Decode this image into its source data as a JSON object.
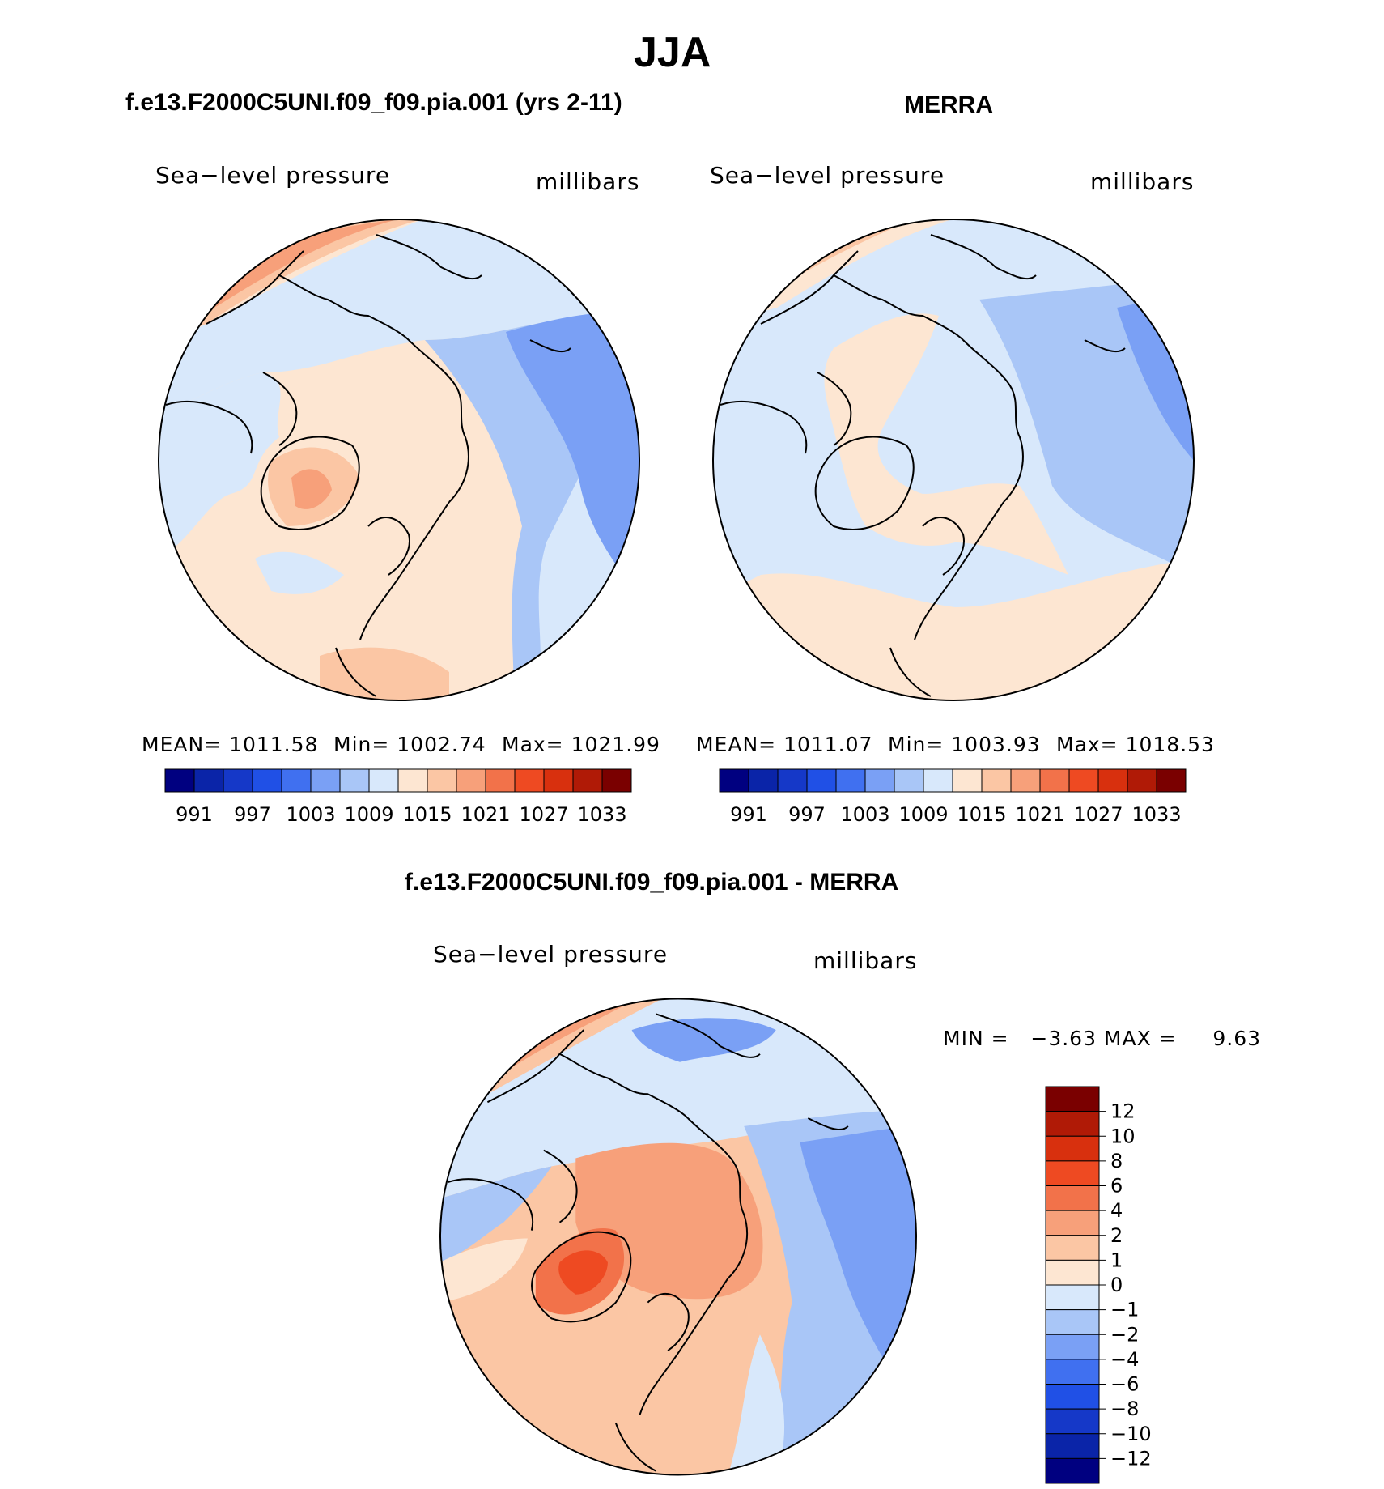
{
  "title": "JJA",
  "panels": [
    {
      "name": "model",
      "title": "f.e13.F2000C5UNI.f09_f09.pia.001 (yrs 2-11)",
      "left_label": "Sea−level pressure",
      "right_label": "millibars",
      "stats": {
        "mean": "MEAN= 1011.58",
        "min": "Min= 1002.74",
        "max": "Max= 1021.99"
      }
    },
    {
      "name": "obs",
      "title": "MERRA",
      "left_label": "Sea−level pressure",
      "right_label": "millibars",
      "stats": {
        "mean": "MEAN= 1011.07",
        "min": "Min= 1003.93",
        "max": "Max= 1018.53"
      }
    },
    {
      "name": "diff",
      "title": "f.e13.F2000C5UNI.f09_f09.pia.001 - MERRA",
      "left_label": "Sea−level pressure",
      "right_label": "millibars",
      "minmax": "MIN =   −3.63 MAX =     9.63"
    }
  ],
  "abs_colorbar": {
    "colors": [
      "#000080",
      "#0a24a8",
      "#1538c8",
      "#2050e6",
      "#4070f0",
      "#7aa0f5",
      "#a9c6f7",
      "#d8e8fb",
      "#fde6d2",
      "#fbc6a4",
      "#f7a07a",
      "#f2724a",
      "#ee4a22",
      "#d8300e",
      "#b01a06",
      "#7a0000"
    ],
    "ticks": [
      "991",
      "997",
      "1003",
      "1009",
      "1015",
      "1021",
      "1027",
      "1033"
    ]
  },
  "diff_colorbar": {
    "colors": [
      "#000080",
      "#0a24a8",
      "#1538c8",
      "#2050e6",
      "#4070f0",
      "#7aa0f5",
      "#a9c6f7",
      "#d8e8fb",
      "#fde6d2",
      "#fbc6a4",
      "#f7a07a",
      "#f2724a",
      "#ee4a22",
      "#d8300e",
      "#b01a06",
      "#7a0000"
    ],
    "ticks": [
      "12",
      "10",
      "8",
      "6",
      "4",
      "2",
      "1",
      "0",
      "−1",
      "−2",
      "−4",
      "−6",
      "−8",
      "−10",
      "−12"
    ]
  },
  "chart_data": [
    {
      "type": "heatmap",
      "title": "f.e13.F2000C5UNI.f09_f09.pia.001 (yrs 2-11)",
      "variable": "Sea−level pressure",
      "units": "millibars",
      "projection": "north polar stereographic",
      "mean": 1011.58,
      "min": 1002.74,
      "max": 1021.99,
      "levels": [
        991,
        997,
        1003,
        1009,
        1015,
        1021,
        1027,
        1033
      ]
    },
    {
      "type": "heatmap",
      "title": "MERRA",
      "variable": "Sea−level pressure",
      "units": "millibars",
      "projection": "north polar stereographic",
      "mean": 1011.07,
      "min": 1003.93,
      "max": 1018.53,
      "levels": [
        991,
        997,
        1003,
        1009,
        1015,
        1021,
        1027,
        1033
      ]
    },
    {
      "type": "heatmap",
      "title": "f.e13.F2000C5UNI.f09_f09.pia.001 - MERRA",
      "variable": "Sea−level pressure",
      "units": "millibars",
      "projection": "north polar stereographic",
      "min": -3.63,
      "max": 9.63,
      "levels": [
        -12,
        -10,
        -8,
        -6,
        -4,
        -2,
        -1,
        0,
        1,
        2,
        4,
        6,
        8,
        10,
        12
      ]
    }
  ]
}
